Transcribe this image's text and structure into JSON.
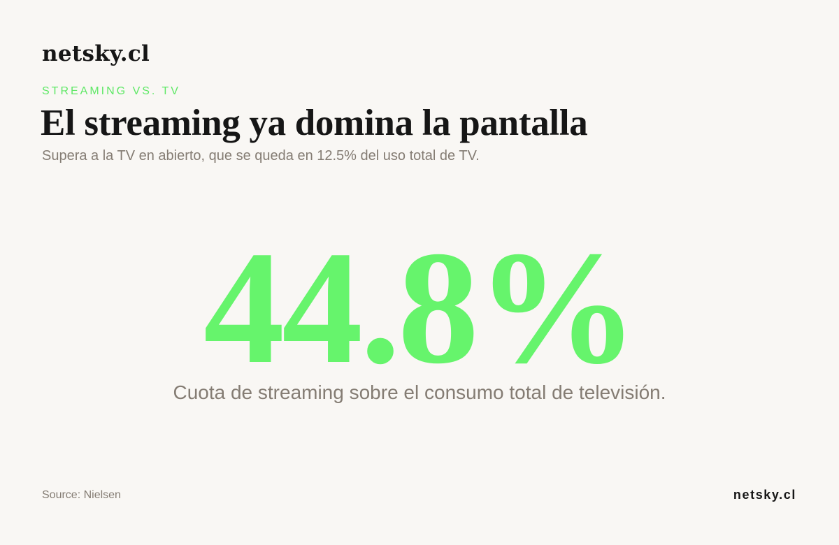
{
  "header": {
    "brand": "netsky.cl",
    "kicker": "STREAMING VS. TV",
    "headline": "El streaming ya domina la pantalla",
    "subtitle": "Supera a la TV en abierto, que se queda en 12.5% del uso total de TV."
  },
  "stat": {
    "value": "44.8%",
    "caption": "Cuota de streaming sobre el consumo total de televisión."
  },
  "footer": {
    "source": "Source: Nielsen",
    "brand": "netsky.cl"
  },
  "colors": {
    "background": "#f9f7f4",
    "accent": "#66f46c",
    "text": "#161616",
    "muted": "#847c73"
  }
}
